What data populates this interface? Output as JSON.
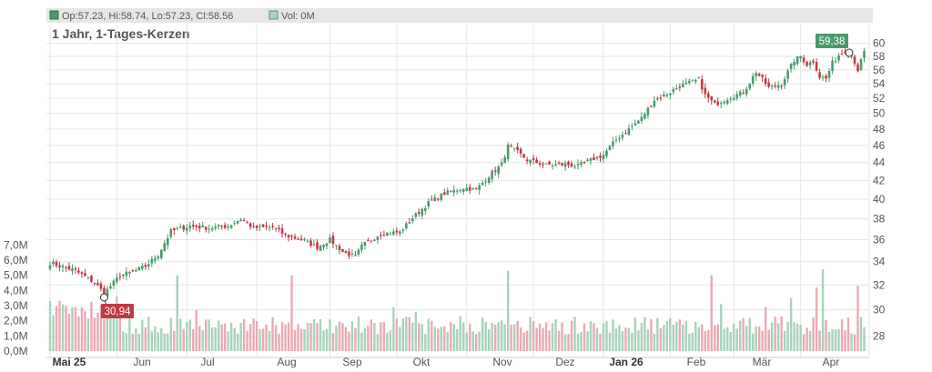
{
  "legend": {
    "ohlc_text": "Op:57.23, Hi:58.74, Lo:57.23, Cl:58.56",
    "vol_text": "Vol: 0M"
  },
  "title": "1 Jahr, 1-Tages-Kerzen",
  "colors": {
    "up": "#4a9a6c",
    "down": "#c03a46",
    "vol_up": "#a9d2bb",
    "vol_down": "#eaaab2",
    "grid": "#e6e6e6",
    "axis_text": "#555555"
  },
  "chart_data": {
    "type": "candlestick",
    "x_labels": [
      "Mai 25",
      "Jun",
      "Jul",
      "Aug",
      "Sep",
      "Okt",
      "Nov",
      "Dez",
      "Jan 26",
      "Feb",
      "Mär",
      "Apr"
    ],
    "price_ticks": [
      28,
      30,
      32,
      34,
      36,
      38,
      40,
      42,
      44,
      46,
      48,
      50,
      52,
      54,
      56,
      58,
      60
    ],
    "price_scale": "log",
    "price_range": [
      26.5,
      63
    ],
    "volume_ticks": [
      "0,0M",
      "1,0M",
      "2,0M",
      "3,0M",
      "4,0M",
      "5,0M",
      "6,0M",
      "7,0M"
    ],
    "volume_range": [
      0,
      7.2
    ],
    "min_marker": {
      "value": "30,94",
      "label": "30,94"
    },
    "max_marker": {
      "value": "59,38",
      "label": "59,38"
    },
    "close_anchors": [
      [
        0,
        33.9
      ],
      [
        8,
        33.2
      ],
      [
        14,
        32.2
      ],
      [
        17,
        31.3
      ],
      [
        22,
        32.8
      ],
      [
        26,
        33.1
      ],
      [
        30,
        33.6
      ],
      [
        34,
        34.6
      ],
      [
        38,
        36.8
      ],
      [
        44,
        37.3
      ],
      [
        50,
        37.1
      ],
      [
        56,
        37.3
      ],
      [
        60,
        38.0
      ],
      [
        64,
        37.1
      ],
      [
        70,
        37.2
      ],
      [
        74,
        36.4
      ],
      [
        80,
        35.9
      ],
      [
        84,
        35.3
      ],
      [
        88,
        36.0
      ],
      [
        92,
        34.9
      ],
      [
        96,
        34.4
      ],
      [
        98,
        35.4
      ],
      [
        104,
        36.6
      ],
      [
        110,
        36.7
      ],
      [
        114,
        38.1
      ],
      [
        119,
        39.6
      ],
      [
        124,
        40.6
      ],
      [
        130,
        41.2
      ],
      [
        134,
        41.0
      ],
      [
        138,
        42.5
      ],
      [
        142,
        43.8
      ],
      [
        144,
        45.9
      ],
      [
        147,
        45.2
      ],
      [
        150,
        44.3
      ],
      [
        156,
        43.7
      ],
      [
        162,
        43.8
      ],
      [
        166,
        43.6
      ],
      [
        170,
        44.3
      ],
      [
        174,
        44.9
      ],
      [
        178,
        46.7
      ],
      [
        182,
        48.0
      ],
      [
        186,
        49.4
      ],
      [
        190,
        51.8
      ],
      [
        194,
        52.6
      ],
      [
        198,
        53.7
      ],
      [
        204,
        54.6
      ],
      [
        206,
        52.4
      ],
      [
        209,
        51.2
      ],
      [
        214,
        52.2
      ],
      [
        218,
        52.8
      ],
      [
        222,
        55.7
      ],
      [
        226,
        53.5
      ],
      [
        230,
        54.0
      ],
      [
        234,
        57.4
      ],
      [
        236,
        58.0
      ],
      [
        238,
        56.8
      ],
      [
        240,
        57.3
      ],
      [
        242,
        55.0
      ],
      [
        244,
        54.7
      ],
      [
        246,
        57.0
      ],
      [
        248,
        58.2
      ],
      [
        250,
        58.8
      ],
      [
        252,
        58.3
      ],
      [
        254,
        56.0
      ],
      [
        256,
        58.6
      ]
    ]
  }
}
